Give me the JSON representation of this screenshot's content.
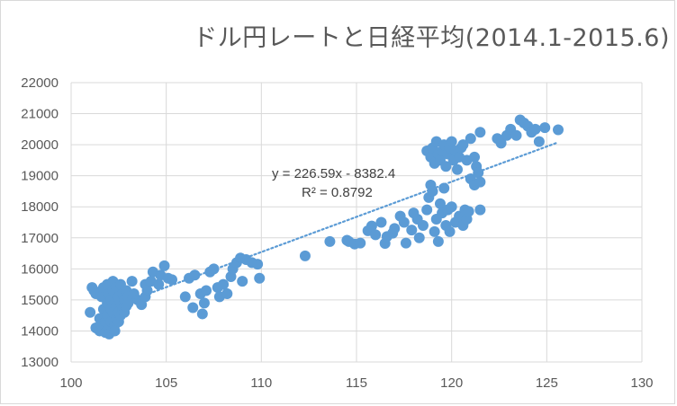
{
  "chart_data": {
    "type": "scatter",
    "title": "ドル円レートと日経平均(2014.1-2015.6)",
    "xlabel": "",
    "ylabel": "",
    "xlim": [
      100,
      130
    ],
    "ylim": [
      13000,
      22000
    ],
    "x_ticks": [
      "100",
      "105",
      "110",
      "115",
      "120",
      "125",
      "130"
    ],
    "y_ticks": [
      "13000",
      "14000",
      "15000",
      "16000",
      "17000",
      "18000",
      "19000",
      "20000",
      "21000",
      "22000"
    ],
    "grid": true,
    "legend": "none",
    "marker_color": "#5b9bd5",
    "trendline": {
      "slope": 226.59,
      "intercept": -8382.4,
      "x_range": [
        103.2,
        125.5
      ],
      "color": "#5b9bd5",
      "style": "dotted",
      "equation_label": "y = 226.59x - 8382.4",
      "r2_label": "R² = 0.8792"
    },
    "series": [
      {
        "values": [
          [
            101.0,
            14600
          ],
          [
            101.1,
            15400
          ],
          [
            101.2,
            15300
          ],
          [
            101.3,
            15200
          ],
          [
            101.3,
            14100
          ],
          [
            101.5,
            14000
          ],
          [
            101.5,
            14400
          ],
          [
            101.6,
            15100
          ],
          [
            101.6,
            14200
          ],
          [
            101.7,
            15400
          ],
          [
            101.7,
            14700
          ],
          [
            101.8,
            14300
          ],
          [
            101.8,
            13950
          ],
          [
            101.9,
            15500
          ],
          [
            101.9,
            14900
          ],
          [
            101.9,
            14500
          ],
          [
            102.0,
            15200
          ],
          [
            102.0,
            14100
          ],
          [
            102.0,
            13900
          ],
          [
            102.1,
            15000
          ],
          [
            102.1,
            14700
          ],
          [
            102.1,
            14300
          ],
          [
            102.2,
            15600
          ],
          [
            102.2,
            15300
          ],
          [
            102.2,
            14600
          ],
          [
            102.3,
            14900
          ],
          [
            102.3,
            14200
          ],
          [
            102.3,
            14000
          ],
          [
            102.4,
            15400
          ],
          [
            102.4,
            14800
          ],
          [
            102.4,
            14400
          ],
          [
            102.5,
            15100
          ],
          [
            102.5,
            14600
          ],
          [
            102.5,
            14300
          ],
          [
            102.6,
            15500
          ],
          [
            102.6,
            14900
          ],
          [
            102.6,
            14500
          ],
          [
            102.7,
            15200
          ],
          [
            102.7,
            14700
          ],
          [
            102.8,
            15000
          ],
          [
            102.8,
            14600
          ],
          [
            102.9,
            15300
          ],
          [
            102.9,
            14800
          ],
          [
            103.0,
            15100
          ],
          [
            103.0,
            14900
          ],
          [
            103.2,
            15600
          ],
          [
            103.3,
            15200
          ],
          [
            103.5,
            15000
          ],
          [
            103.7,
            14850
          ],
          [
            103.9,
            15100
          ],
          [
            103.9,
            15500
          ],
          [
            104.0,
            15300
          ],
          [
            104.2,
            15600
          ],
          [
            104.3,
            15900
          ],
          [
            104.6,
            15500
          ],
          [
            104.7,
            15800
          ],
          [
            104.9,
            16100
          ],
          [
            105.1,
            15700
          ],
          [
            105.3,
            15650
          ],
          [
            106.0,
            15100
          ],
          [
            106.2,
            15700
          ],
          [
            106.4,
            14750
          ],
          [
            106.5,
            15800
          ],
          [
            106.8,
            15200
          ],
          [
            106.9,
            14550
          ],
          [
            107.0,
            14900
          ],
          [
            107.1,
            15300
          ],
          [
            107.3,
            15900
          ],
          [
            107.5,
            16000
          ],
          [
            107.7,
            15400
          ],
          [
            107.8,
            15100
          ],
          [
            108.0,
            15500
          ],
          [
            108.2,
            15200
          ],
          [
            108.4,
            15750
          ],
          [
            108.5,
            16000
          ],
          [
            108.7,
            16200
          ],
          [
            108.9,
            16350
          ],
          [
            109.0,
            15600
          ],
          [
            109.2,
            16300
          ],
          [
            109.5,
            16200
          ],
          [
            109.8,
            16150
          ],
          [
            109.9,
            15700
          ],
          [
            112.3,
            16420
          ],
          [
            113.6,
            16880
          ],
          [
            114.5,
            16920
          ],
          [
            114.6,
            16880
          ],
          [
            114.9,
            16800
          ],
          [
            115.2,
            16830
          ],
          [
            115.6,
            17230
          ],
          [
            115.8,
            17380
          ],
          [
            116.0,
            17100
          ],
          [
            116.3,
            17500
          ],
          [
            116.5,
            16820
          ],
          [
            116.6,
            17040
          ],
          [
            116.9,
            17150
          ],
          [
            117.0,
            17300
          ],
          [
            117.3,
            17700
          ],
          [
            117.5,
            17500
          ],
          [
            117.6,
            16830
          ],
          [
            117.9,
            17250
          ],
          [
            118.0,
            17800
          ],
          [
            118.2,
            17600
          ],
          [
            118.3,
            17000
          ],
          [
            118.5,
            17400
          ],
          [
            118.7,
            17900
          ],
          [
            118.8,
            18300
          ],
          [
            118.9,
            18700
          ],
          [
            119.0,
            18500
          ],
          [
            119.1,
            17200
          ],
          [
            119.2,
            17600
          ],
          [
            119.3,
            16880
          ],
          [
            119.4,
            18100
          ],
          [
            119.5,
            17800
          ],
          [
            119.6,
            18600
          ],
          [
            119.7,
            17400
          ],
          [
            119.8,
            17900
          ],
          [
            119.9,
            17200
          ],
          [
            120.0,
            18000
          ],
          [
            120.2,
            17500
          ],
          [
            120.4,
            17700
          ],
          [
            120.6,
            17400
          ],
          [
            120.7,
            17900
          ],
          [
            120.8,
            17600
          ],
          [
            120.9,
            17850
          ],
          [
            121.0,
            18900
          ],
          [
            121.2,
            18700
          ],
          [
            121.3,
            19300
          ],
          [
            121.4,
            19100
          ],
          [
            121.5,
            17900
          ],
          [
            121.5,
            18800
          ],
          [
            118.7,
            19800
          ],
          [
            118.9,
            19600
          ],
          [
            119.0,
            19900
          ],
          [
            119.1,
            19400
          ],
          [
            119.2,
            20100
          ],
          [
            119.3,
            19700
          ],
          [
            119.4,
            19500
          ],
          [
            119.5,
            19800
          ],
          [
            119.6,
            20000
          ],
          [
            119.7,
            19300
          ],
          [
            119.8,
            19700
          ],
          [
            119.9,
            19900
          ],
          [
            120.0,
            20100
          ],
          [
            120.1,
            19500
          ],
          [
            120.2,
            19800
          ],
          [
            120.3,
            19200
          ],
          [
            120.4,
            19600
          ],
          [
            120.5,
            19900
          ],
          [
            120.6,
            20000
          ],
          [
            120.8,
            19500
          ],
          [
            121.0,
            20200
          ],
          [
            121.2,
            19600
          ],
          [
            121.5,
            20400
          ],
          [
            122.4,
            20200
          ],
          [
            122.6,
            20050
          ],
          [
            122.9,
            20300
          ],
          [
            123.1,
            20500
          ],
          [
            123.4,
            20300
          ],
          [
            123.6,
            20800
          ],
          [
            123.8,
            20700
          ],
          [
            124.0,
            20600
          ],
          [
            124.2,
            20400
          ],
          [
            124.4,
            20500
          ],
          [
            124.6,
            20100
          ],
          [
            124.9,
            20550
          ],
          [
            125.6,
            20480
          ]
        ]
      }
    ]
  }
}
